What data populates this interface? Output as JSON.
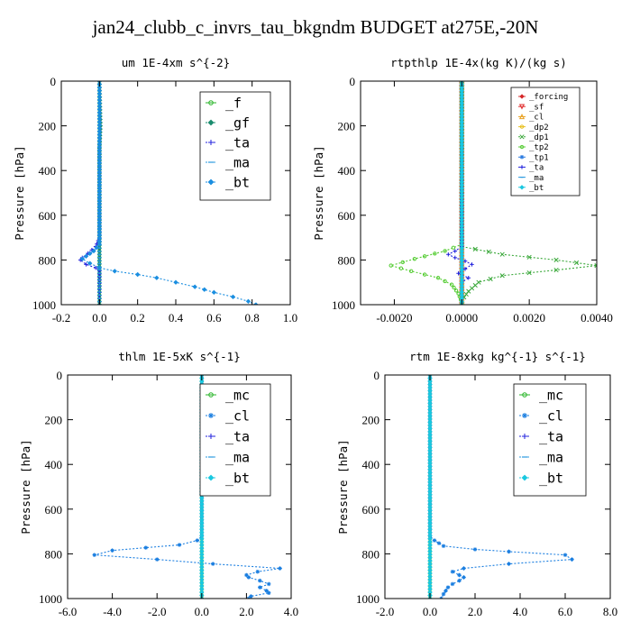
{
  "title": "jan24_clubb_c_invrs_tau_bkgndm  BUDGET at275E,-20N",
  "chart_data": [
    {
      "type": "line",
      "title": "um  1E-4xm s^{-2}",
      "xlabel": "",
      "ylabel": "Pressure [hPa]",
      "xlim": [
        -0.2,
        1.0
      ],
      "ylim": [
        1000,
        0
      ],
      "xticks": [
        "-0.2",
        "0.0",
        "0.2",
        "0.4",
        "0.6",
        "0.8",
        "1.0"
      ],
      "xtick_values": [
        -0.2,
        0.0,
        0.2,
        0.4,
        0.6,
        0.8,
        1.0
      ],
      "yticks": [
        "0",
        "200",
        "400",
        "600",
        "800",
        "1000"
      ],
      "ytick_values": [
        0,
        200,
        400,
        600,
        800,
        1000
      ],
      "legend_position": "top-right",
      "legend_size": "large",
      "series": [
        {
          "name": "_f",
          "color": "#2ab52a",
          "marker": "circle",
          "line": "solid",
          "points": [
            [
              0.0,
              0
            ],
            [
              0.0,
              1000
            ]
          ]
        },
        {
          "name": "_gf",
          "color": "#1a8c6e",
          "marker": "diamond",
          "line": "dotted",
          "points": [
            [
              0.0,
              0
            ],
            [
              0.005,
              200
            ],
            [
              0.0,
              300
            ],
            [
              0.0,
              1000
            ]
          ]
        },
        {
          "name": "_ta",
          "color": "#2222dd",
          "marker": "plus",
          "line": "dotted",
          "points": [
            [
              0.0,
              0
            ],
            [
              0.0,
              700
            ],
            [
              -0.02,
              740
            ],
            [
              -0.06,
              770
            ],
            [
              -0.09,
              790
            ],
            [
              -0.1,
              800
            ],
            [
              -0.07,
              820
            ],
            [
              -0.02,
              835
            ],
            [
              0.0,
              850
            ],
            [
              0.0,
              1000
            ]
          ]
        },
        {
          "name": "_ma",
          "color": "#2a9adf",
          "marker": "dash",
          "line": "dotted",
          "points": [
            [
              0.0,
              0
            ],
            [
              0.0,
              1000
            ]
          ]
        },
        {
          "name": "_bt",
          "color": "#1a8ee0",
          "marker": "diamond",
          "line": "dotted",
          "points": [
            [
              0.0,
              0
            ],
            [
              0.0,
              730
            ],
            [
              -0.03,
              760
            ],
            [
              -0.09,
              795
            ],
            [
              -0.05,
              815
            ],
            [
              0.0,
              835
            ],
            [
              0.08,
              850
            ],
            [
              0.2,
              865
            ],
            [
              0.3,
              880
            ],
            [
              0.4,
              900
            ],
            [
              0.5,
              920
            ],
            [
              0.6,
              945
            ],
            [
              0.7,
              965
            ],
            [
              0.78,
              985
            ],
            [
              0.82,
              1000
            ]
          ]
        }
      ]
    },
    {
      "type": "line",
      "title": "rtpthlp  1E-4x(kg K)/(kg s)",
      "xlabel": "",
      "ylabel": "Pressure [hPa]",
      "xlim": [
        -0.003,
        0.004
      ],
      "ylim": [
        1000,
        0
      ],
      "xticks": [
        "-0.0020",
        "0.0000",
        "0.0020",
        "0.0040"
      ],
      "xtick_values": [
        -0.002,
        0.0,
        0.002,
        0.004
      ],
      "yticks": [
        "0",
        "200",
        "400",
        "600",
        "800",
        "1000"
      ],
      "ytick_values": [
        0,
        200,
        400,
        600,
        800,
        1000
      ],
      "legend_position": "top-right",
      "legend_size": "small",
      "series": [
        {
          "name": "_forcing",
          "color": "#d62728",
          "marker": "diamond",
          "line": "solid",
          "points": [
            [
              0.0,
              0
            ],
            [
              0.0,
              1000
            ]
          ]
        },
        {
          "name": "_sf",
          "color": "#e03030",
          "marker": "triangle-down",
          "line": "solid",
          "points": [
            [
              0.0,
              0
            ],
            [
              0.0,
              1000
            ]
          ]
        },
        {
          "name": "_cl",
          "color": "#e8a020",
          "marker": "triangle-up",
          "line": "solid",
          "points": [
            [
              0.0,
              0
            ],
            [
              0.0,
              1000
            ]
          ]
        },
        {
          "name": "_dp2",
          "color": "#e8c020",
          "marker": "circle",
          "line": "solid",
          "points": [
            [
              0.0,
              0
            ],
            [
              0.0,
              1000
            ]
          ]
        },
        {
          "name": "_dp1",
          "color": "#3aa83a",
          "marker": "x",
          "line": "dotted",
          "points": [
            [
              0.0,
              0
            ],
            [
              0.0,
              740
            ],
            [
              0.0012,
              775
            ],
            [
              0.0028,
              800
            ],
            [
              0.004,
              825
            ],
            [
              0.0028,
              845
            ],
            [
              0.0012,
              870
            ],
            [
              0.0005,
              900
            ],
            [
              0.0002,
              940
            ],
            [
              0.0,
              980
            ],
            [
              0.0,
              1000
            ]
          ]
        },
        {
          "name": "_tp2",
          "color": "#55cc33",
          "marker": "circle",
          "line": "dotted",
          "points": [
            [
              0.0,
              0
            ],
            [
              0.0,
              730
            ],
            [
              -0.0005,
              760
            ],
            [
              -0.0014,
              795
            ],
            [
              -0.0021,
              825
            ],
            [
              -0.0015,
              850
            ],
            [
              -0.0007,
              880
            ],
            [
              -0.0003,
              910
            ],
            [
              -0.0001,
              950
            ],
            [
              0.0,
              990
            ],
            [
              0.0,
              1000
            ]
          ]
        },
        {
          "name": "_tp1",
          "color": "#2a7ae0",
          "marker": "star",
          "line": "dotted",
          "points": [
            [
              0.0,
              0
            ],
            [
              0.0,
              1000
            ]
          ]
        },
        {
          "name": "_ta",
          "color": "#2222dd",
          "marker": "plus",
          "line": "dotted",
          "points": [
            [
              0.0,
              0
            ],
            [
              0.0,
              740
            ],
            [
              -0.0002,
              760
            ],
            [
              -0.0004,
              775
            ],
            [
              -0.0002,
              790
            ],
            [
              0.0001,
              805
            ],
            [
              0.0003,
              820
            ],
            [
              0.0001,
              840
            ],
            [
              -0.0001,
              860
            ],
            [
              0.0002,
              880
            ],
            [
              0.0,
              900
            ],
            [
              0.0,
              1000
            ]
          ]
        },
        {
          "name": "_ma",
          "color": "#2a9adf",
          "marker": "dash",
          "line": "dotted",
          "points": [
            [
              0.0,
              0
            ],
            [
              0.0,
              1000
            ]
          ]
        },
        {
          "name": "_bt",
          "color": "#1ac8e0",
          "marker": "diamond",
          "line": "dotted",
          "points": [
            [
              0.0,
              0
            ],
            [
              0.0,
              1000
            ]
          ]
        }
      ]
    },
    {
      "type": "line",
      "title": "thlm  1E-5xK s^{-1}",
      "xlabel": "",
      "ylabel": "Pressure [hPa]",
      "xlim": [
        -6.0,
        4.0
      ],
      "ylim": [
        1000,
        0
      ],
      "xticks": [
        "-6.0",
        "-4.0",
        "-2.0",
        "0.0",
        "2.0",
        "4.0"
      ],
      "xtick_values": [
        -6.0,
        -4.0,
        -2.0,
        0.0,
        2.0,
        4.0
      ],
      "yticks": [
        "0",
        "200",
        "400",
        "600",
        "800",
        "1000"
      ],
      "ytick_values": [
        0,
        200,
        400,
        600,
        800,
        1000
      ],
      "legend_position": "top-right",
      "legend_size": "large",
      "series": [
        {
          "name": "_mc",
          "color": "#2ab52a",
          "marker": "circle",
          "line": "solid",
          "points": [
            [
              0.0,
              0
            ],
            [
              0.0,
              1000
            ]
          ]
        },
        {
          "name": "_cl",
          "color": "#1a7ee0",
          "marker": "star",
          "line": "dotted",
          "points": [
            [
              0.0,
              0
            ],
            [
              0.0,
              720
            ],
            [
              -0.2,
              740
            ],
            [
              -1.0,
              760
            ],
            [
              -4.0,
              785
            ],
            [
              -4.8,
              805
            ],
            [
              -2.0,
              825
            ],
            [
              0.5,
              845
            ],
            [
              3.5,
              865
            ],
            [
              2.5,
              880
            ],
            [
              2.0,
              895
            ],
            [
              2.1,
              905
            ],
            [
              2.6,
              920
            ],
            [
              3.0,
              935
            ],
            [
              2.6,
              950
            ],
            [
              2.9,
              965
            ],
            [
              3.0,
              975
            ],
            [
              2.2,
              990
            ],
            [
              2.1,
              1000
            ]
          ]
        },
        {
          "name": "_ta",
          "color": "#2222dd",
          "marker": "plus",
          "line": "dotted",
          "points": [
            [
              0.0,
              0
            ],
            [
              0.0,
              1000
            ]
          ]
        },
        {
          "name": "_ma",
          "color": "#2a9adf",
          "marker": "dash",
          "line": "dotted",
          "points": [
            [
              0.0,
              0
            ],
            [
              0.0,
              1000
            ]
          ]
        },
        {
          "name": "_bt",
          "color": "#1ac8e0",
          "marker": "diamond",
          "line": "dotted",
          "points": [
            [
              0.0,
              0
            ],
            [
              0.0,
              1000
            ]
          ]
        }
      ]
    },
    {
      "type": "line",
      "title": "rtm  1E-8xkg kg^{-1} s^{-1}",
      "xlabel": "",
      "ylabel": "Pressure [hPa]",
      "xlim": [
        -2.0,
        8.0
      ],
      "ylim": [
        1000,
        0
      ],
      "xticks": [
        "-2.0",
        "0.0",
        "2.0",
        "4.0",
        "6.0",
        "8.0"
      ],
      "xtick_values": [
        -2.0,
        0.0,
        2.0,
        4.0,
        6.0,
        8.0
      ],
      "yticks": [
        "0",
        "200",
        "400",
        "600",
        "800",
        "1000"
      ],
      "ytick_values": [
        0,
        200,
        400,
        600,
        800,
        1000
      ],
      "legend_position": "top-right",
      "legend_size": "large",
      "series": [
        {
          "name": "_mc",
          "color": "#2ab52a",
          "marker": "circle",
          "line": "solid",
          "points": [
            [
              0.0,
              0
            ],
            [
              0.0,
              1000
            ]
          ]
        },
        {
          "name": "_cl",
          "color": "#1a7ee0",
          "marker": "star",
          "line": "dotted",
          "points": [
            [
              0.0,
              0
            ],
            [
              0.0,
              720
            ],
            [
              0.2,
              740
            ],
            [
              0.6,
              765
            ],
            [
              2.0,
              780
            ],
            [
              3.5,
              790
            ],
            [
              6.0,
              805
            ],
            [
              6.3,
              825
            ],
            [
              3.5,
              845
            ],
            [
              1.5,
              865
            ],
            [
              1.0,
              880
            ],
            [
              1.3,
              895
            ],
            [
              1.5,
              905
            ],
            [
              1.3,
              920
            ],
            [
              1.0,
              935
            ],
            [
              0.8,
              950
            ],
            [
              0.7,
              965
            ],
            [
              0.6,
              980
            ],
            [
              0.5,
              1000
            ]
          ]
        },
        {
          "name": "_ta",
          "color": "#2222dd",
          "marker": "plus",
          "line": "dotted",
          "points": [
            [
              0.0,
              0
            ],
            [
              0.0,
              1000
            ]
          ]
        },
        {
          "name": "_ma",
          "color": "#2a9adf",
          "marker": "dash",
          "line": "dotted",
          "points": [
            [
              0.0,
              0
            ],
            [
              0.0,
              1000
            ]
          ]
        },
        {
          "name": "_bt",
          "color": "#1ac8e0",
          "marker": "diamond",
          "line": "dotted",
          "points": [
            [
              0.0,
              0
            ],
            [
              0.0,
              1000
            ]
          ]
        }
      ]
    }
  ]
}
